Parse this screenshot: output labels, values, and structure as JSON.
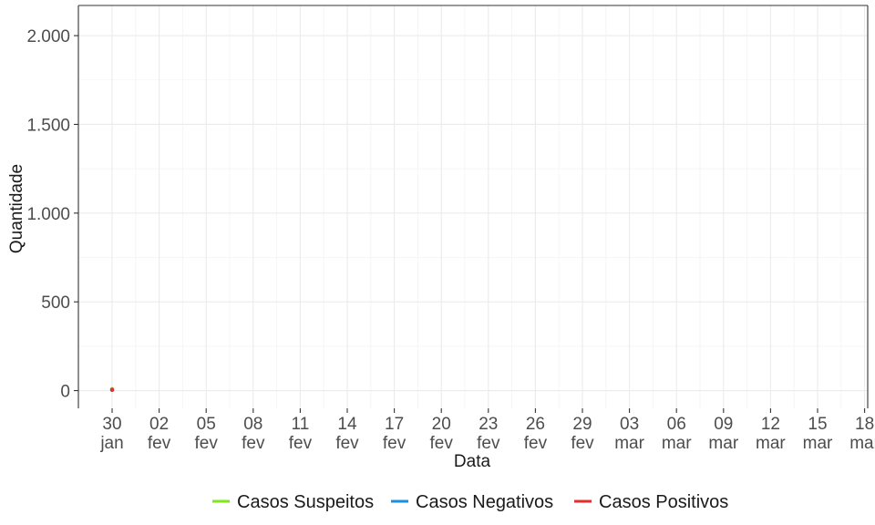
{
  "chart_data": {
    "type": "line",
    "title": "",
    "xlabel": "Data",
    "ylabel": "Quantidade",
    "ylim": [
      -100,
      2170
    ],
    "y_ticks": [
      0,
      500,
      1000,
      1500,
      2000
    ],
    "y_tick_labels": [
      "0",
      "500",
      "1.000",
      "1.500",
      "2.000"
    ],
    "x_start": "2020-01-30",
    "x_ticks": [
      {
        "date": "2020-01-30",
        "day": "30",
        "month": "jan"
      },
      {
        "date": "2020-02-02",
        "day": "02",
        "month": "fev"
      },
      {
        "date": "2020-02-05",
        "day": "05",
        "month": "fev"
      },
      {
        "date": "2020-02-08",
        "day": "08",
        "month": "fev"
      },
      {
        "date": "2020-02-11",
        "day": "11",
        "month": "fev"
      },
      {
        "date": "2020-02-14",
        "day": "14",
        "month": "fev"
      },
      {
        "date": "2020-02-17",
        "day": "17",
        "month": "fev"
      },
      {
        "date": "2020-02-20",
        "day": "20",
        "month": "fev"
      },
      {
        "date": "2020-02-23",
        "day": "23",
        "month": "fev"
      },
      {
        "date": "2020-02-26",
        "day": "26",
        "month": "fev"
      },
      {
        "date": "2020-02-29",
        "day": "29",
        "month": "fev"
      },
      {
        "date": "2020-03-03",
        "day": "03",
        "month": "mar"
      },
      {
        "date": "2020-03-06",
        "day": "06",
        "month": "mar"
      },
      {
        "date": "2020-03-09",
        "day": "09",
        "month": "mar"
      },
      {
        "date": "2020-03-12",
        "day": "12",
        "month": "mar"
      },
      {
        "date": "2020-03-15",
        "day": "15",
        "month": "mar"
      },
      {
        "date": "2020-03-18",
        "day": "18",
        "month": "mar"
      }
    ],
    "grid": true,
    "legend_position": "bottom",
    "series": [
      {
        "name": "Casos Suspeitos",
        "color": "#7fe619",
        "points": [
          {
            "x": "2020-01-30",
            "y": 9
          }
        ]
      },
      {
        "name": "Casos Negativos",
        "color": "#1a8fe6",
        "points": [
          {
            "x": "2020-01-30",
            "y": 3
          }
        ]
      },
      {
        "name": "Casos Positivos",
        "color": "#e62e2e",
        "points": [
          {
            "x": "2020-01-30",
            "y": 5
          }
        ]
      }
    ]
  }
}
